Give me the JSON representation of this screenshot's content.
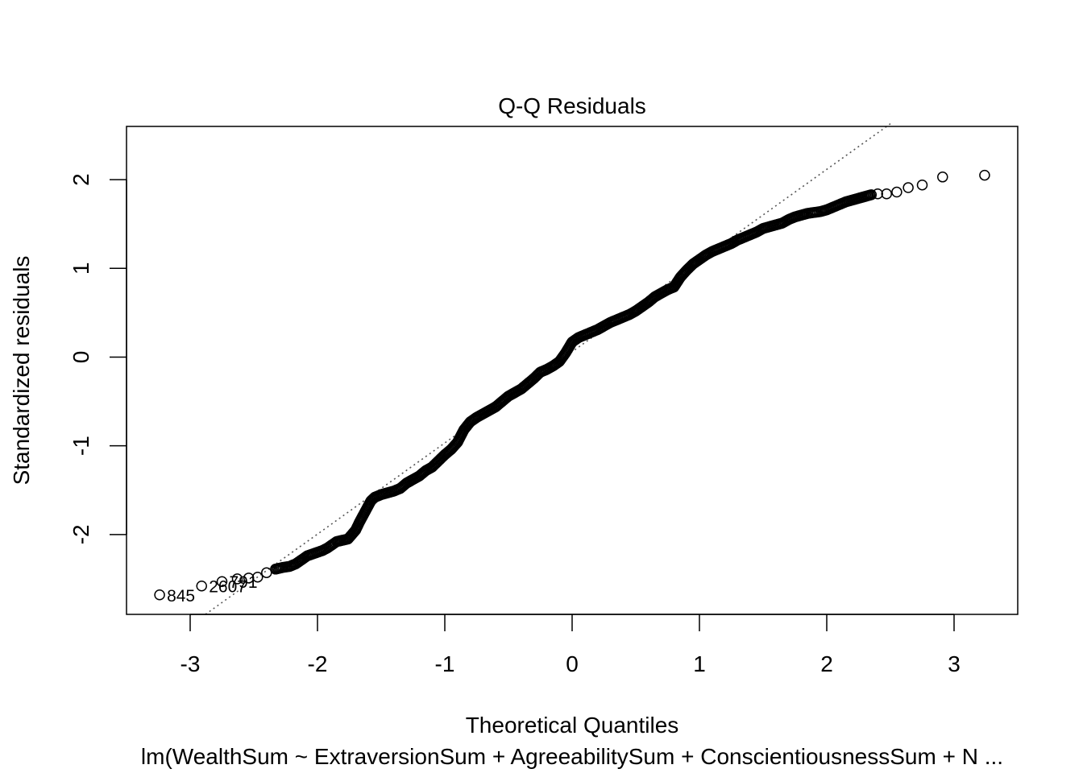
{
  "chart_data": {
    "type": "scatter",
    "title": "Q-Q Residuals",
    "xlabel": "Theoretical Quantiles",
    "ylabel": "Standardized residuals",
    "subtitle": "lm(WealthSum ~ ExtraversionSum + AgreeabilitySum + ConscientiousnessSum + N ...",
    "xlim": [
      -3.5,
      3.5
    ],
    "ylim": [
      -2.9,
      2.6
    ],
    "x_ticks": [
      "-3",
      "-2",
      "-1",
      "0",
      "1",
      "2",
      "3"
    ],
    "y_ticks": [
      "-2",
      "-1",
      "0",
      "1",
      "2"
    ],
    "reference_line": {
      "style": "dotted",
      "color": "#555555",
      "points": [
        [
          -2.88,
          -2.9
        ],
        [
          2.5,
          2.63
        ]
      ]
    },
    "series": [
      {
        "points": [
          [
            -3.24,
            -2.68
          ],
          [
            -2.91,
            -2.58
          ],
          [
            -2.75,
            -2.53
          ],
          [
            -2.63,
            -2.5
          ],
          [
            -2.54,
            -2.49
          ],
          [
            -2.47,
            -2.48
          ],
          [
            -2.4,
            -2.43
          ],
          [
            -2.33,
            -2.39
          ],
          [
            -2.27,
            -2.37
          ],
          [
            -2.22,
            -2.36
          ],
          [
            -2.17,
            -2.33
          ],
          [
            -2.12,
            -2.28
          ],
          [
            -2.08,
            -2.24
          ],
          [
            -2.04,
            -2.22
          ],
          [
            -2.0,
            -2.2
          ],
          [
            -1.96,
            -2.18
          ],
          [
            -1.92,
            -2.15
          ],
          [
            -1.88,
            -2.11
          ],
          [
            -1.85,
            -2.08
          ],
          [
            -1.82,
            -2.07
          ],
          [
            -1.79,
            -2.06
          ],
          [
            -1.76,
            -2.05
          ],
          [
            -1.73,
            -2.0
          ],
          [
            -1.7,
            -1.95
          ],
          [
            -1.67,
            -1.86
          ],
          [
            -1.64,
            -1.78
          ],
          [
            -1.61,
            -1.7
          ],
          [
            -1.58,
            -1.62
          ],
          [
            -1.55,
            -1.58
          ],
          [
            -1.5,
            -1.55
          ],
          [
            -1.45,
            -1.53
          ],
          [
            -1.4,
            -1.51
          ],
          [
            -1.35,
            -1.48
          ],
          [
            -1.3,
            -1.42
          ],
          [
            -1.25,
            -1.38
          ],
          [
            -1.2,
            -1.34
          ],
          [
            -1.15,
            -1.28
          ],
          [
            -1.1,
            -1.24
          ],
          [
            -1.05,
            -1.17
          ],
          [
            -1.0,
            -1.1
          ],
          [
            -0.95,
            -1.04
          ],
          [
            -0.9,
            -0.96
          ],
          [
            -0.85,
            -0.82
          ],
          [
            -0.8,
            -0.73
          ],
          [
            -0.75,
            -0.68
          ],
          [
            -0.7,
            -0.64
          ],
          [
            -0.65,
            -0.6
          ],
          [
            -0.6,
            -0.56
          ],
          [
            -0.55,
            -0.5
          ],
          [
            -0.5,
            -0.44
          ],
          [
            -0.45,
            -0.4
          ],
          [
            -0.4,
            -0.36
          ],
          [
            -0.35,
            -0.3
          ],
          [
            -0.3,
            -0.24
          ],
          [
            -0.25,
            -0.17
          ],
          [
            -0.2,
            -0.14
          ],
          [
            -0.15,
            -0.1
          ],
          [
            -0.1,
            -0.05
          ],
          [
            -0.05,
            0.05
          ],
          [
            0.0,
            0.17
          ],
          [
            0.05,
            0.22
          ],
          [
            0.1,
            0.25
          ],
          [
            0.15,
            0.28
          ],
          [
            0.2,
            0.31
          ],
          [
            0.25,
            0.35
          ],
          [
            0.3,
            0.39
          ],
          [
            0.35,
            0.42
          ],
          [
            0.4,
            0.45
          ],
          [
            0.45,
            0.48
          ],
          [
            0.5,
            0.52
          ],
          [
            0.55,
            0.57
          ],
          [
            0.6,
            0.62
          ],
          [
            0.65,
            0.68
          ],
          [
            0.7,
            0.72
          ],
          [
            0.75,
            0.76
          ],
          [
            0.8,
            0.79
          ],
          [
            0.85,
            0.9
          ],
          [
            0.9,
            0.98
          ],
          [
            0.95,
            1.05
          ],
          [
            1.0,
            1.1
          ],
          [
            1.05,
            1.15
          ],
          [
            1.1,
            1.19
          ],
          [
            1.15,
            1.22
          ],
          [
            1.2,
            1.25
          ],
          [
            1.25,
            1.28
          ],
          [
            1.3,
            1.32
          ],
          [
            1.35,
            1.35
          ],
          [
            1.4,
            1.38
          ],
          [
            1.45,
            1.41
          ],
          [
            1.5,
            1.45
          ],
          [
            1.55,
            1.47
          ],
          [
            1.6,
            1.49
          ],
          [
            1.65,
            1.51
          ],
          [
            1.7,
            1.55
          ],
          [
            1.75,
            1.58
          ],
          [
            1.8,
            1.6
          ],
          [
            1.85,
            1.62
          ],
          [
            1.9,
            1.63
          ],
          [
            1.95,
            1.64
          ],
          [
            2.0,
            1.66
          ],
          [
            2.05,
            1.69
          ],
          [
            2.1,
            1.72
          ],
          [
            2.15,
            1.75
          ],
          [
            2.2,
            1.77
          ],
          [
            2.25,
            1.79
          ],
          [
            2.3,
            1.81
          ],
          [
            2.35,
            1.83
          ],
          [
            2.4,
            1.84
          ],
          [
            2.47,
            1.84
          ],
          [
            2.55,
            1.86
          ],
          [
            2.64,
            1.91
          ],
          [
            2.75,
            1.94
          ],
          [
            2.91,
            2.03
          ],
          [
            3.24,
            2.05
          ]
        ]
      }
    ],
    "point_labels": [
      {
        "text": "845",
        "x": -3.24,
        "y": -2.68
      },
      {
        "text": "2607",
        "x": -2.91,
        "y": -2.58
      },
      {
        "text": "791",
        "x": -2.75,
        "y": -2.53
      }
    ]
  }
}
